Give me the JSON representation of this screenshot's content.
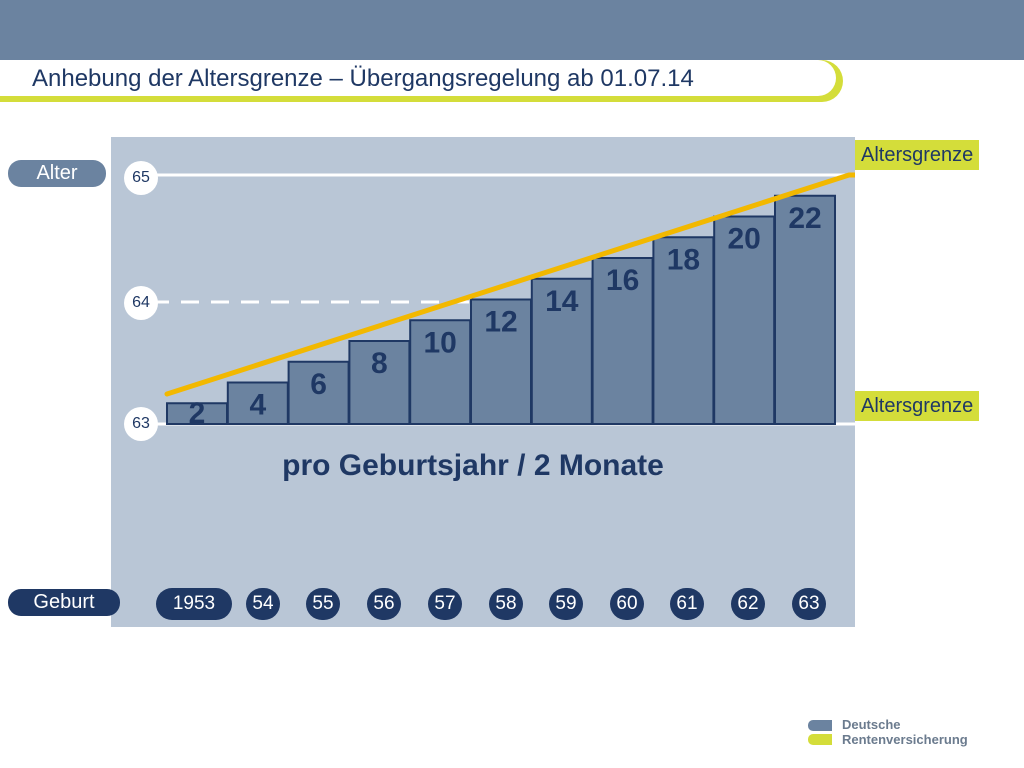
{
  "title": "Anhebung der Altersgrenze – Übergangsregelung ab 01.07.14",
  "colors": {
    "bar": "#6b83a0",
    "bar_border": "#1f3864",
    "line": "#f2b800",
    "accent": "#d4dd3a",
    "panel": "#b9c6d6"
  },
  "y_axis": {
    "label": "Alter",
    "ticks": [
      "65",
      "64",
      "63"
    ]
  },
  "x_axis": {
    "label": "Geburt",
    "ticks": [
      "1953",
      "54",
      "55",
      "56",
      "57",
      "58",
      "59",
      "60",
      "61",
      "62",
      "63"
    ]
  },
  "subtitle": "pro Geburtsjahr / 2 Monate",
  "altersgrenze_top": "Altersgrenze",
  "altersgrenze_bottom": "Altersgrenze",
  "logo": {
    "line1": "Deutsche",
    "line2": "Rentenversicherung"
  },
  "chart_data": {
    "type": "bar",
    "categories": [
      "1953",
      "54",
      "55",
      "56",
      "57",
      "58",
      "59",
      "60",
      "61",
      "62",
      "63"
    ],
    "values": [
      2,
      4,
      6,
      8,
      10,
      12,
      14,
      16,
      18,
      20,
      22
    ],
    "data_labels": [
      "2",
      "4",
      "6",
      "8",
      "10",
      "12",
      "14",
      "16",
      "18",
      "20",
      "22"
    ],
    "unit": "Monate",
    "ylim": [
      0,
      24
    ],
    "y_ticks_age": [
      63,
      64,
      65
    ],
    "line": {
      "from_age": 63,
      "to_age": 65
    }
  }
}
